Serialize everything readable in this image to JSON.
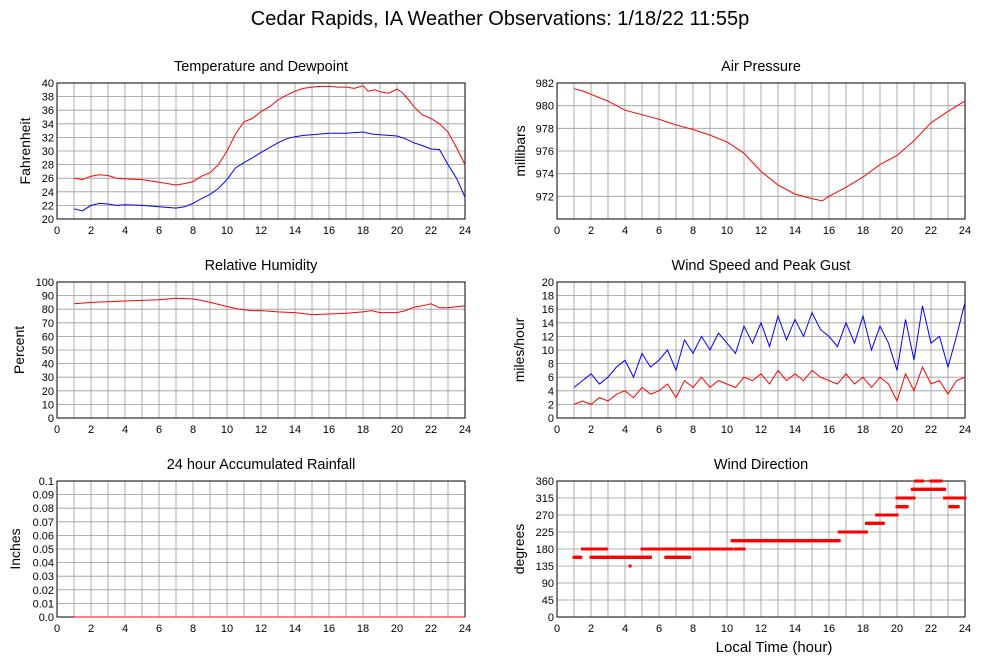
{
  "page": {
    "title": "Cedar Rapids, IA Weather Observations: 1/18/22 11:55p",
    "x_axis_label": "Local Time (hour)"
  },
  "chart_data": [
    {
      "id": "temp",
      "type": "line",
      "title": "Temperature and Dewpoint",
      "ylabel": "Fahrenheit",
      "xlabel": "",
      "xlim": [
        0,
        24
      ],
      "ylim": [
        20,
        40
      ],
      "x_ticks": [
        0,
        2,
        4,
        6,
        8,
        10,
        12,
        14,
        16,
        18,
        20,
        22,
        24
      ],
      "y_ticks": [
        20,
        22,
        24,
        26,
        28,
        30,
        32,
        34,
        36,
        38,
        40
      ],
      "grid": true,
      "series": [
        {
          "color": "#ff0000",
          "x": [
            1,
            1.5,
            2,
            2.5,
            3,
            3.5,
            4,
            5,
            6,
            7,
            7.5,
            8,
            8.5,
            9,
            9.5,
            10,
            10.5,
            11,
            11.5,
            12,
            12.5,
            13,
            13.5,
            14,
            14.5,
            15,
            15.5,
            16,
            16.5,
            17,
            17.5,
            18,
            18.3,
            18.7,
            19,
            19.5,
            20,
            20.3,
            20.7,
            21,
            21.5,
            22,
            22.5,
            23,
            23.5,
            24
          ],
          "y": [
            26,
            25.8,
            26.3,
            26.5,
            26.4,
            26,
            25.9,
            25.8,
            25.4,
            25,
            25.2,
            25.5,
            26.3,
            26.8,
            28,
            30,
            32.5,
            34.3,
            34.8,
            35.8,
            36.5,
            37.5,
            38.2,
            38.8,
            39.2,
            39.4,
            39.5,
            39.5,
            39.4,
            39.4,
            39.2,
            39.6,
            38.8,
            39,
            38.7,
            38.5,
            39.1,
            38.6,
            37.5,
            36.5,
            35.3,
            34.8,
            34,
            32.8,
            30.5,
            28
          ]
        },
        {
          "color": "#0000ff",
          "x": [
            1,
            1.5,
            2,
            2.5,
            3,
            3.5,
            4,
            5,
            6,
            7,
            7.5,
            8,
            8.5,
            9,
            9.5,
            10,
            10.5,
            11,
            11.5,
            12,
            12.5,
            13,
            13.5,
            14,
            14.5,
            15,
            15.5,
            16,
            16.5,
            17,
            17.5,
            18,
            18.5,
            19,
            19.5,
            20,
            20.5,
            21,
            21.5,
            22,
            22.5,
            23,
            23.5,
            24
          ],
          "y": [
            21.5,
            21.2,
            22,
            22.3,
            22.2,
            22,
            22.1,
            22,
            21.8,
            21.6,
            21.8,
            22.3,
            23,
            23.6,
            24.5,
            25.8,
            27.5,
            28.3,
            29,
            29.8,
            30.5,
            31.2,
            31.8,
            32.1,
            32.3,
            32.4,
            32.5,
            32.6,
            32.6,
            32.6,
            32.7,
            32.8,
            32.5,
            32.4,
            32.3,
            32.2,
            31.8,
            31.2,
            30.8,
            30.3,
            30.2,
            28,
            26,
            23.2
          ]
        }
      ]
    },
    {
      "id": "pressure",
      "type": "line",
      "title": "Air Pressure",
      "ylabel": "millibars",
      "xlabel": "",
      "xlim": [
        0,
        24
      ],
      "ylim": [
        970,
        982
      ],
      "x_ticks": [
        0,
        2,
        4,
        6,
        8,
        10,
        12,
        14,
        16,
        18,
        20,
        22,
        24
      ],
      "y_ticks": [
        972,
        974,
        976,
        978,
        980,
        982
      ],
      "grid": true,
      "series": [
        {
          "color": "#ff0000",
          "x": [
            1,
            1.5,
            2,
            3,
            4,
            5,
            6,
            7,
            8,
            9,
            10,
            11,
            12,
            13,
            14,
            15,
            15.6,
            16,
            17,
            18,
            19,
            20,
            21,
            22,
            23,
            24
          ],
          "y": [
            981.5,
            981.3,
            981,
            980.4,
            979.6,
            979.2,
            978.8,
            978.3,
            977.9,
            977.4,
            976.8,
            975.8,
            974.2,
            973,
            972.2,
            971.8,
            971.6,
            972,
            972.8,
            973.7,
            974.8,
            975.6,
            976.9,
            978.5,
            979.5,
            980.4
          ]
        }
      ]
    },
    {
      "id": "humidity",
      "type": "line",
      "title": "Relative Humidity",
      "ylabel": "Percent",
      "xlabel": "",
      "xlim": [
        0,
        24
      ],
      "ylim": [
        0,
        100
      ],
      "x_ticks": [
        0,
        2,
        4,
        6,
        8,
        10,
        12,
        14,
        16,
        18,
        20,
        22,
        24
      ],
      "y_ticks": [
        0,
        10,
        20,
        30,
        40,
        50,
        60,
        70,
        80,
        90,
        100
      ],
      "grid": true,
      "series": [
        {
          "color": "#ff0000",
          "x": [
            1,
            1.5,
            2,
            3,
            4,
            5,
            6,
            7,
            8,
            8.5,
            9,
            9.5,
            10,
            10.5,
            11,
            11.5,
            12,
            13,
            14,
            15,
            16,
            17,
            18,
            18.5,
            19,
            20,
            20.5,
            21,
            21.5,
            22,
            22.5,
            23,
            24
          ],
          "y": [
            84,
            84.5,
            85,
            85.5,
            86,
            86.5,
            87,
            88,
            87.5,
            86.5,
            85,
            83.5,
            82,
            80.5,
            79.5,
            79,
            79,
            78,
            77.5,
            76,
            76.5,
            77,
            78,
            79,
            77.5,
            77.5,
            79,
            81.5,
            82.5,
            84,
            81,
            81,
            82.5
          ]
        }
      ]
    },
    {
      "id": "wind",
      "type": "line",
      "title": "Wind Speed and Peak Gust",
      "ylabel": "miles/hour",
      "xlabel": "",
      "xlim": [
        0,
        24
      ],
      "ylim": [
        0,
        20
      ],
      "x_ticks": [
        0,
        2,
        4,
        6,
        8,
        10,
        12,
        14,
        16,
        18,
        20,
        22,
        24
      ],
      "y_ticks": [
        0,
        2,
        4,
        6,
        8,
        10,
        12,
        14,
        16,
        18,
        20
      ],
      "grid": true,
      "series": [
        {
          "color": "#0000ff",
          "x": [
            1,
            1.5,
            2,
            2.5,
            3,
            3.5,
            4,
            4.5,
            5,
            5.5,
            6,
            6.5,
            7,
            7.5,
            8,
            8.5,
            9,
            9.5,
            10,
            10.5,
            11,
            11.5,
            12,
            12.5,
            13,
            13.5,
            14,
            14.5,
            15,
            15.5,
            16,
            16.5,
            17,
            17.5,
            18,
            18.5,
            19,
            19.5,
            20,
            20.5,
            21,
            21.5,
            22,
            22.5,
            23,
            23.5,
            24
          ],
          "y": [
            4.5,
            5.5,
            6.5,
            5,
            6,
            7.5,
            8.5,
            6,
            9.5,
            7.5,
            8.5,
            10,
            7,
            11.5,
            9.5,
            12,
            10,
            12.5,
            11,
            9.5,
            13.5,
            11,
            14,
            10.5,
            15,
            11.5,
            14.5,
            12,
            15.5,
            13,
            12,
            10.5,
            14,
            11,
            15,
            10,
            13.5,
            11,
            7,
            14.5,
            8.5,
            16.5,
            11,
            12,
            7.5,
            12,
            17
          ]
        },
        {
          "color": "#ff0000",
          "x": [
            1,
            1.5,
            2,
            2.5,
            3,
            3.5,
            4,
            4.5,
            5,
            5.5,
            6,
            6.5,
            7,
            7.5,
            8,
            8.5,
            9,
            9.5,
            10,
            10.5,
            11,
            11.5,
            12,
            12.5,
            13,
            13.5,
            14,
            14.5,
            15,
            15.5,
            16,
            16.5,
            17,
            17.5,
            18,
            18.5,
            19,
            19.5,
            20,
            20.5,
            21,
            21.5,
            22,
            22.5,
            23,
            23.5,
            24
          ],
          "y": [
            2,
            2.5,
            2,
            3,
            2.5,
            3.5,
            4,
            3,
            4.5,
            3.5,
            4,
            5,
            3,
            5.5,
            4.5,
            6,
            4.5,
            5.5,
            5,
            4.5,
            6,
            5.5,
            6.5,
            5,
            7,
            5.5,
            6.5,
            5.5,
            7,
            6,
            5.5,
            5,
            6.5,
            5,
            6,
            4.5,
            6,
            5,
            2.5,
            6.5,
            4,
            7.5,
            5,
            5.5,
            3.5,
            5.5,
            6
          ]
        }
      ]
    },
    {
      "id": "rain",
      "type": "line",
      "title": "24 hour Accumulated Rainfall",
      "ylabel": "Inches",
      "xlabel": "",
      "xlim": [
        0,
        24
      ],
      "ylim": [
        0,
        0.1
      ],
      "x_ticks": [
        0,
        2,
        4,
        6,
        8,
        10,
        12,
        14,
        16,
        18,
        20,
        22,
        24
      ],
      "y_ticks": [
        "0.0",
        "0.01",
        "0.02",
        "0.03",
        "0.04",
        "0.05",
        "0.06",
        "0.07",
        "0.08",
        "0.09",
        "0.1"
      ],
      "grid": true,
      "series": [
        {
          "color": "#ff0000",
          "x": [
            1,
            24
          ],
          "y": [
            0,
            0
          ]
        }
      ]
    },
    {
      "id": "direction",
      "type": "scatter",
      "title": "Wind Direction",
      "ylabel": "degrees",
      "xlabel": "Local Time (hour)",
      "xlim": [
        0,
        24
      ],
      "ylim": [
        0,
        360
      ],
      "x_ticks": [
        0,
        2,
        4,
        6,
        8,
        10,
        12,
        14,
        16,
        18,
        20,
        22,
        24
      ],
      "y_ticks": [
        0,
        45,
        90,
        135,
        180,
        225,
        270,
        315,
        360
      ],
      "grid": true,
      "series": [
        {
          "color": "#ff0000",
          "segments": [
            [
              1.0,
              1.4,
              158
            ],
            [
              1.5,
              2.9,
              180
            ],
            [
              2.0,
              4.6,
              158
            ],
            [
              4.7,
              5.5,
              158
            ],
            [
              5.0,
              5.4,
              180
            ],
            [
              5.5,
              7.8,
              180
            ],
            [
              6.4,
              7.8,
              158
            ],
            [
              7.8,
              10.3,
              180
            ],
            [
              10.5,
              11.0,
              180
            ],
            [
              10.3,
              10.9,
              202
            ],
            [
              11.0,
              16.2,
              202
            ],
            [
              16.3,
              16.6,
              202
            ],
            [
              16.6,
              18.2,
              225
            ],
            [
              18.2,
              19.2,
              248
            ],
            [
              18.8,
              19.5,
              270
            ],
            [
              19.5,
              20.0,
              270
            ],
            [
              20.0,
              20.6,
              292
            ],
            [
              20.0,
              21.0,
              315
            ],
            [
              20.9,
              21.6,
              338
            ],
            [
              21.1,
              21.5,
              360
            ],
            [
              21.6,
              22.8,
              338
            ],
            [
              22.0,
              22.6,
              360
            ],
            [
              22.8,
              24.0,
              315
            ],
            [
              23.1,
              23.6,
              292
            ]
          ],
          "points": [
            [
              4.3,
              135
            ],
            [
              1.2,
              158
            ],
            [
              2.6,
              158
            ],
            [
              9.2,
              180
            ],
            [
              8.7,
              180
            ],
            [
              17.3,
              225
            ]
          ]
        }
      ]
    }
  ]
}
